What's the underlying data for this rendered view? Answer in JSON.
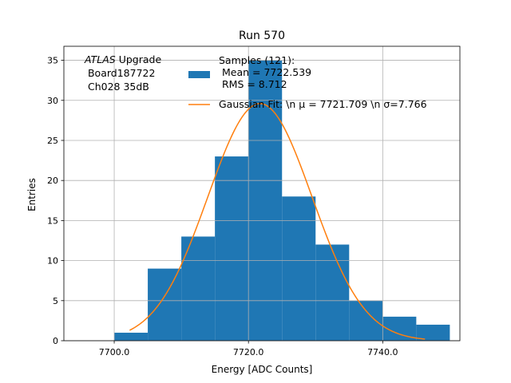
{
  "chart_data": {
    "type": "bar",
    "title": "Run 570",
    "xlabel": "Energy [ADC Counts]",
    "ylabel": "Entries",
    "xlim": [
      7692.5,
      7751.5
    ],
    "ylim": [
      0,
      36.75
    ],
    "xticks": [
      7700,
      7720,
      7740
    ],
    "xtick_labels": [
      "7700.0",
      "7720.0",
      "7740.0"
    ],
    "yticks": [
      0,
      5,
      10,
      15,
      20,
      25,
      30,
      35
    ],
    "ytick_labels": [
      "0",
      "5",
      "10",
      "15",
      "20",
      "25",
      "30",
      "35"
    ],
    "grid": true,
    "histogram": {
      "bin_edges": [
        7700,
        7705,
        7710,
        7715,
        7720,
        7725,
        7730,
        7735,
        7740,
        7745,
        7750
      ],
      "counts": [
        1,
        9,
        13,
        23,
        35,
        18,
        12,
        5,
        3,
        2
      ],
      "color": "#1f77b4"
    },
    "fit": {
      "mu": 7721.709,
      "sigma": 7.766,
      "amplitude": 29.6,
      "x_start": 7702.3,
      "x_end": 7746.3,
      "color": "#ff7f0e"
    },
    "legend": {
      "placement": "upper-center",
      "entries": [
        {
          "label_lines": [
            "Samples (121):",
            " Mean = 7722.539",
            " RMS = 8.712"
          ],
          "kind": "patch",
          "color": "#1f77b4"
        },
        {
          "label_lines": [
            "Gaussian Fit: \\n μ = 7721.709 \\n σ=7.766"
          ],
          "kind": "line",
          "color": "#ff7f0e"
        }
      ]
    },
    "annotation": {
      "lines": [
        {
          "italic": "ATLAS",
          "rest": " Upgrade"
        },
        {
          "italic": "",
          "rest": " Board187722"
        },
        {
          "italic": "",
          "rest": " Ch028 35dB"
        }
      ]
    }
  }
}
